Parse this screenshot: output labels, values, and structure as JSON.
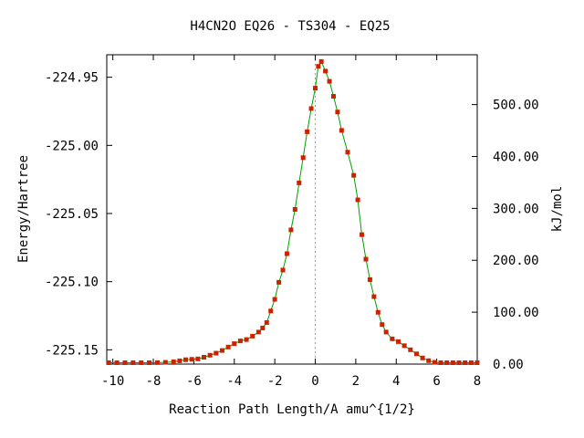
{
  "chart_data": {
    "type": "scatter",
    "title": "H4CN2O   EQ26 - TS304 - EQ25",
    "xlabel": "Reaction Path Length/A amu^{1/2}",
    "ylabel": "Energy/Hartree",
    "y2label": "kJ/mol",
    "xlim": [
      -10.3,
      8
    ],
    "ylim": [
      -225.1605,
      -224.9335
    ],
    "y2lim": [
      0,
      596
    ],
    "x_ticks": [
      -10,
      -8,
      -6,
      -4,
      -2,
      0,
      2,
      4,
      6,
      8
    ],
    "x_tick_labels": [
      "-10",
      "-8",
      "-6",
      "-4",
      "-2",
      "0",
      "2",
      "4",
      "6",
      "8"
    ],
    "y_ticks": [
      -224.95,
      -225.0,
      -225.05,
      -225.1,
      -225.15
    ],
    "y_tick_labels": [
      "-224.95",
      "-225.00",
      "-225.05",
      "-225.10",
      "-225.15"
    ],
    "y2_ticks": [
      0,
      100,
      200,
      300,
      400,
      500
    ],
    "y2_tick_labels": [
      "0.00",
      "100.00",
      "200.00",
      "300.00",
      "400.00",
      "500.00"
    ],
    "grid": false,
    "ts_marker_x": 0,
    "colors": {
      "curve": "#00a000",
      "points": "#cc2200",
      "ts_line": "#999999"
    },
    "series": [
      {
        "x": [
          -10.2,
          -9.8,
          -9.4,
          -9.0,
          -8.6,
          -8.2,
          -7.8,
          -7.4,
          -7.0,
          -6.7,
          -6.4,
          -6.1,
          -5.8,
          -5.5,
          -5.2,
          -4.9,
          -4.6,
          -4.3,
          -4.0,
          -3.7,
          -3.4,
          -3.1,
          -2.8,
          -2.6,
          -2.4,
          -2.2,
          -2.0,
          -1.8,
          -1.6,
          -1.4,
          -1.2,
          -1.0,
          -0.8,
          -0.6,
          -0.4,
          -0.2,
          0.0,
          0.15,
          0.3,
          0.5,
          0.7,
          0.9,
          1.1,
          1.3,
          1.6,
          1.9,
          2.1,
          2.3,
          2.5,
          2.7,
          2.9,
          3.1,
          3.3,
          3.5,
          3.8,
          4.1,
          4.4,
          4.7,
          5.0,
          5.3,
          5.6,
          5.9,
          6.2,
          6.5,
          6.8,
          7.1,
          7.4,
          7.7,
          8.0
        ],
        "y": [
          -225.1595,
          -225.1595,
          -225.1595,
          -225.1595,
          -225.1595,
          -225.1595,
          -225.1594,
          -225.1592,
          -225.1588,
          -225.1581,
          -225.1573,
          -225.157,
          -225.1567,
          -225.1555,
          -225.154,
          -225.1525,
          -225.1505,
          -225.148,
          -225.1455,
          -225.1435,
          -225.1425,
          -225.14,
          -225.137,
          -225.134,
          -225.13,
          -225.1215,
          -225.113,
          -225.1005,
          -225.0915,
          -225.0795,
          -225.062,
          -225.047,
          -225.0275,
          -225.009,
          -224.99,
          -224.973,
          -224.958,
          -224.942,
          -224.9385,
          -224.9455,
          -224.953,
          -224.964,
          -224.9755,
          -224.989,
          -225.005,
          -225.022,
          -225.04,
          -225.0655,
          -225.0835,
          -225.0985,
          -225.111,
          -225.1225,
          -225.1315,
          -225.137,
          -225.142,
          -225.144,
          -225.147,
          -225.15,
          -225.153,
          -225.156,
          -225.158,
          -225.1592,
          -225.1595,
          -225.1595,
          -225.1595,
          -225.1595,
          -225.1595,
          -225.1595,
          -225.1595
        ]
      }
    ]
  }
}
